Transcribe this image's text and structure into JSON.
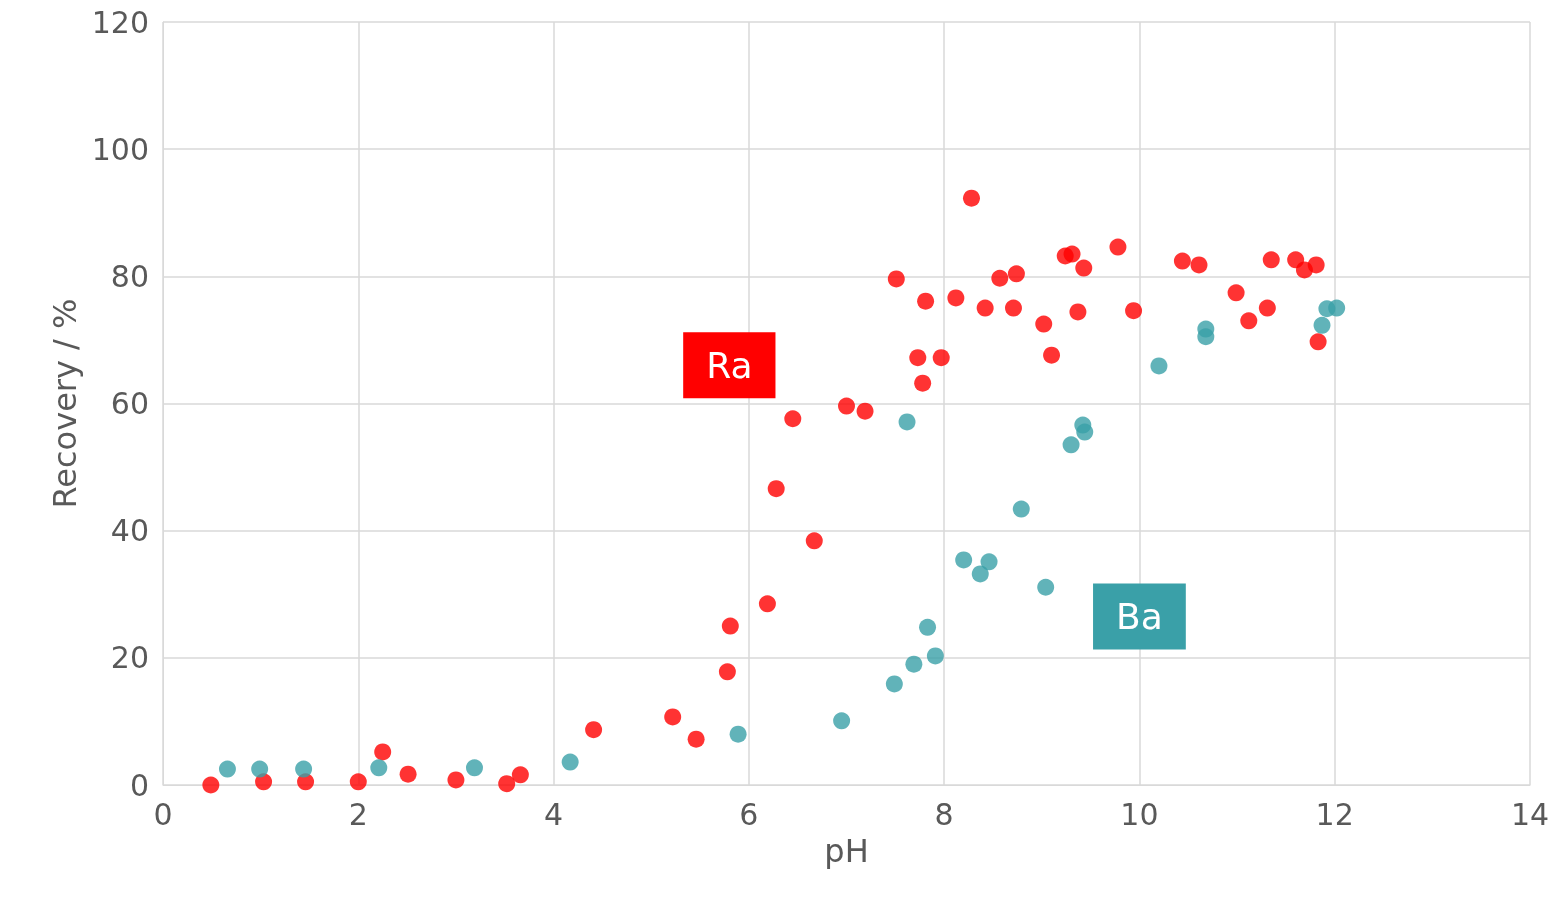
{
  "chart_data": {
    "type": "scatter",
    "xlabel": "pH",
    "ylabel": "Recovery / %",
    "xlim": [
      0,
      14
    ],
    "xticks": [
      0,
      2,
      4,
      6,
      8,
      10,
      12,
      14
    ],
    "ylim": [
      0,
      120
    ],
    "yticks": [
      0,
      20,
      40,
      60,
      80,
      100,
      120
    ],
    "grid": true,
    "legend": false,
    "marker": "circle",
    "series": [
      {
        "name": "Ra",
        "color": "#ff0000",
        "x": [
          0.49,
          1.03,
          1.46,
          2.0,
          2.25,
          2.51,
          3.0,
          3.52,
          3.66,
          4.41,
          5.22,
          5.46,
          5.78,
          5.81,
          6.19,
          6.28,
          6.45,
          6.67,
          7.0,
          7.19,
          7.51,
          7.73,
          7.78,
          7.81,
          7.97,
          8.12,
          8.28,
          8.42,
          8.57,
          8.71,
          8.74,
          9.02,
          9.1,
          9.24,
          9.31,
          9.37,
          9.43,
          9.78,
          9.94,
          10.44,
          10.61,
          10.99,
          11.12,
          11.31,
          11.35,
          11.6,
          11.69,
          11.81,
          11.83
        ],
        "values": [
          0,
          0.5,
          0.5,
          0.5,
          5.2,
          1.7,
          0.8,
          0.2,
          1.6,
          8.7,
          10.7,
          7.2,
          17.8,
          25.0,
          28.5,
          46.6,
          57.6,
          38.4,
          59.6,
          58.8,
          79.6,
          67.2,
          63.2,
          76.1,
          67.2,
          76.6,
          92.3,
          75.0,
          79.7,
          75.0,
          80.4,
          72.5,
          67.6,
          83.2,
          83.5,
          74.4,
          81.3,
          84.6,
          74.6,
          82.4,
          81.8,
          77.4,
          73.0,
          75.0,
          82.6,
          82.6,
          81.0,
          81.8,
          69.7
        ]
      },
      {
        "name": "Ba",
        "color": "#3aa0a8",
        "x": [
          0.66,
          0.99,
          1.44,
          2.21,
          3.19,
          4.17,
          5.89,
          6.95,
          7.49,
          7.69,
          7.83,
          7.91,
          7.62,
          8.2,
          8.37,
          8.46,
          8.79,
          9.04,
          9.3,
          9.42,
          9.44,
          10.2,
          10.68,
          10.68,
          11.87,
          11.92,
          12.02
        ],
        "values": [
          2.5,
          2.5,
          2.5,
          2.7,
          2.7,
          3.6,
          8.0,
          10.1,
          15.9,
          19.0,
          24.8,
          20.3,
          57.1,
          35.4,
          33.2,
          35.1,
          43.4,
          31.1,
          53.5,
          56.6,
          55.5,
          65.9,
          71.7,
          70.5,
          72.3,
          74.9,
          75.0
        ]
      }
    ]
  }
}
